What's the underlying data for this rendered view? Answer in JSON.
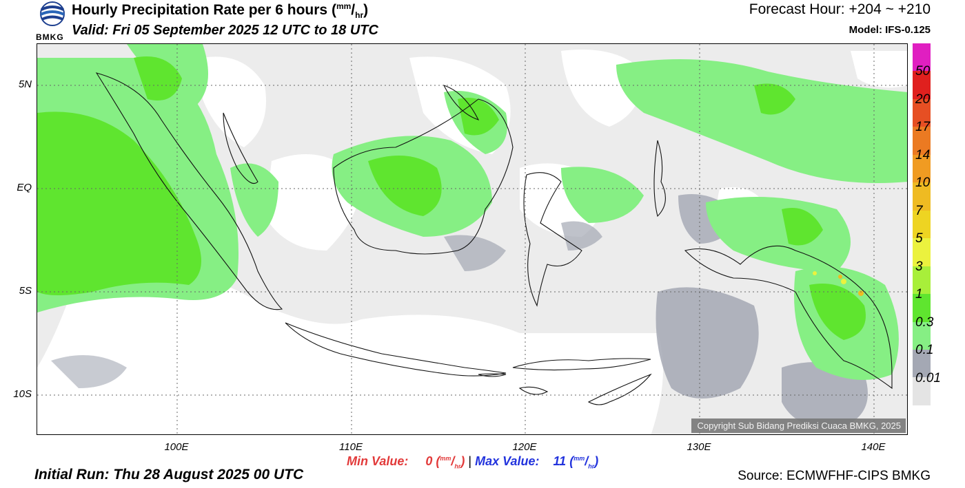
{
  "header": {
    "title": "Hourly Precipitation Rate per 6 hours",
    "title_unit_open": "(",
    "title_unit_num": "mm",
    "title_unit_sep": "/",
    "title_unit_den": "hr",
    "title_unit_close": ")",
    "valid": "Valid: Fri 05 September 2025 12 UTC to 18 UTC",
    "forecast_hour": "Forecast Hour: +204 ~ +210",
    "model": "Model: IFS-0.125"
  },
  "logo": {
    "text": "BMKG",
    "icon": "bmkg-globe-icon"
  },
  "map": {
    "lat_labels": [
      "5N",
      "EQ",
      "5S",
      "10S"
    ],
    "lon_labels": [
      "100E",
      "110E",
      "120E",
      "130E",
      "140E"
    ],
    "copyright": "Copyright Sub Bidang Prediksi Cuaca BMKG, 2025"
  },
  "legend": {
    "labels": [
      "50",
      "20",
      "17",
      "14",
      "10",
      "7",
      "5",
      "3",
      "1",
      "0.3",
      "0.1",
      "0.01"
    ],
    "colors": [
      "#e01fc1",
      "#e0201e",
      "#e64f23",
      "#eb7a22",
      "#f09b22",
      "#efbb22",
      "#eed422",
      "#ebf23e",
      "#a8ef3a",
      "#5fe52f",
      "#86ef84",
      "#a4a8b4",
      "#e4e4e4"
    ]
  },
  "stats": {
    "min_label": "Min Value:",
    "min_value": "0",
    "sep": "|",
    "max_label": "Max Value:",
    "max_value": "11",
    "unit_num": "mm",
    "unit_den": "hr"
  },
  "footer": {
    "initial_run": "Initial Run: Thu 28 August 2025 00 UTC",
    "source": "Source: ECMWFHF-CIPS BMKG"
  },
  "colors": {
    "min": "#e23a3a",
    "max": "#2233dd",
    "light_rain": "#86ef84",
    "moderate_rain": "#5fe52f",
    "cloud_gray": "#a4a8b4",
    "trace": "#e4e4e4"
  }
}
